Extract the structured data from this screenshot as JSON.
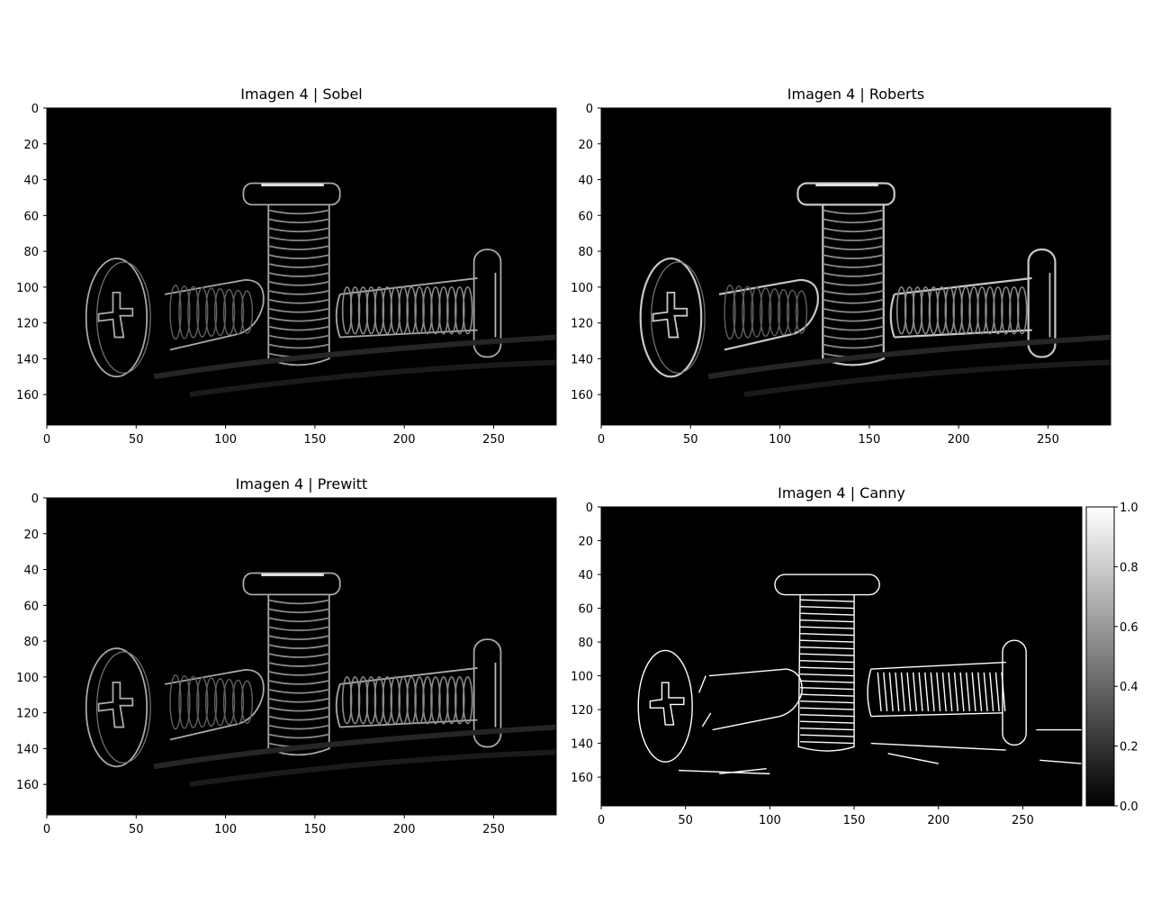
{
  "chart_data": [
    {
      "type": "image",
      "title": "Imagen 4 | Sobel",
      "xlim": [
        0,
        285
      ],
      "ylim": [
        177,
        0
      ],
      "xticks": [
        0,
        50,
        100,
        150,
        200,
        250
      ],
      "yticks": [
        0,
        20,
        40,
        60,
        80,
        100,
        120,
        140,
        160
      ],
      "style": "soft"
    },
    {
      "type": "image",
      "title": "Imagen 4 | Roberts",
      "xlim": [
        0,
        285
      ],
      "ylim": [
        177,
        0
      ],
      "xticks": [
        0,
        50,
        100,
        150,
        200,
        250
      ],
      "yticks": [
        0,
        20,
        40,
        60,
        80,
        100,
        120,
        140,
        160
      ],
      "style": "soft"
    },
    {
      "type": "image",
      "title": "Imagen 4 | Prewitt",
      "xlim": [
        0,
        285
      ],
      "ylim": [
        177,
        0
      ],
      "xticks": [
        0,
        50,
        100,
        150,
        200,
        250
      ],
      "yticks": [
        0,
        20,
        40,
        60,
        80,
        100,
        120,
        140,
        160
      ],
      "style": "soft"
    },
    {
      "type": "image",
      "title": "Imagen 4 | Canny",
      "xlim": [
        0,
        285
      ],
      "ylim": [
        177,
        0
      ],
      "xticks": [
        0,
        50,
        100,
        150,
        200,
        250
      ],
      "yticks": [
        0,
        20,
        40,
        60,
        80,
        100,
        120,
        140,
        160
      ],
      "style": "binary",
      "colorbar": {
        "range": [
          0.0,
          1.0
        ],
        "ticks": [
          "0.0",
          "0.2",
          "0.4",
          "0.6",
          "0.8",
          "1.0"
        ],
        "colormap": "gray"
      }
    }
  ]
}
